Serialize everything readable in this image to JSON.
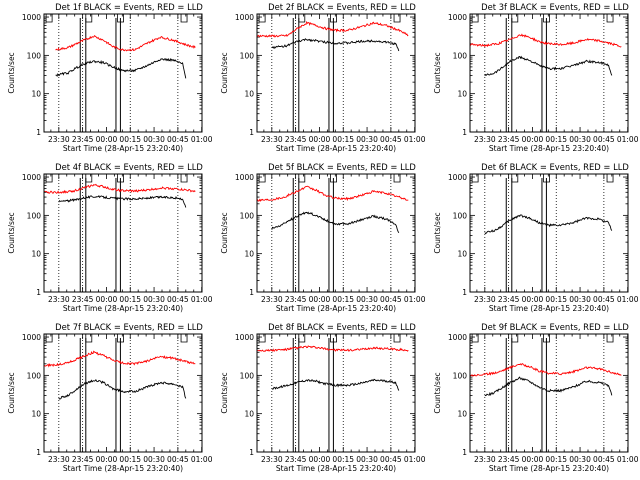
{
  "chart_data": [
    {
      "type": "line",
      "title": "Det 1f BLACK = Events, RED = LLD",
      "xlabel": "Start Time (28-Apr-15 23:20:40)",
      "ylabel": "Counts/sec",
      "yscale": "log",
      "ylim": [
        1,
        1200
      ],
      "y_ticks": [
        1,
        10,
        100,
        1000
      ],
      "y_tick_labels": [
        "1",
        "10",
        "100",
        "1000"
      ],
      "xlim": [
        "23:20:40",
        "01:00"
      ],
      "x_ticks": [
        "23:30",
        "23:45",
        "00:00",
        "00:15",
        "00:30",
        "00:45",
        "01:00"
      ],
      "grid": "dotted vertical lines at 23:30, 23:45, 00:15, 00:45",
      "series": [
        {
          "color": "#ff0000",
          "x": [
            "23:28",
            "23:36",
            "23:44",
            "23:52",
            "23:58",
            "00:04",
            "00:10",
            "00:18",
            "00:26",
            "00:34",
            "00:42",
            "00:50",
            "00:56"
          ],
          "values": [
            140,
            160,
            230,
            320,
            250,
            170,
            140,
            140,
            210,
            300,
            250,
            190,
            160
          ]
        },
        {
          "color": "#000000",
          "x": [
            "23:28",
            "23:36",
            "23:40",
            "23:46",
            "23:52",
            "23:58",
            "00:04",
            "00:10",
            "00:18",
            "00:26",
            "00:34",
            "00:42",
            "00:48",
            "00:50"
          ],
          "values": [
            30,
            35,
            45,
            60,
            70,
            65,
            50,
            40,
            40,
            55,
            80,
            75,
            60,
            25
          ]
        }
      ]
    },
    {
      "type": "line",
      "title": "Det 2f BLACK = Events, RED = LLD",
      "xlabel": "Start Time (28-Apr-15 23:20:40)",
      "ylabel": "Counts/sec",
      "yscale": "log",
      "ylim": [
        1,
        1200
      ],
      "y_ticks": [
        1,
        10,
        100,
        1000
      ],
      "y_tick_labels": [
        "1",
        "10",
        "100",
        "1000"
      ],
      "xlim": [
        "23:20:40",
        "01:00"
      ],
      "x_ticks": [
        "23:30",
        "23:45",
        "00:00",
        "00:15",
        "00:30",
        "00:45",
        "01:00"
      ],
      "grid": "dotted vertical lines at 23:30, 23:45, 00:15, 00:45",
      "series": [
        {
          "color": "#ff0000",
          "x": [
            "23:21",
            "23:36",
            "23:40",
            "23:46",
            "23:52",
            "23:58",
            "00:04",
            "00:10",
            "00:18",
            "00:26",
            "00:34",
            "00:42",
            "00:50",
            "00:56"
          ],
          "values": [
            320,
            320,
            330,
            500,
            700,
            600,
            500,
            450,
            450,
            550,
            700,
            600,
            450,
            330
          ]
        },
        {
          "color": "#000000",
          "x": [
            "23:30",
            "23:36",
            "23:40",
            "23:46",
            "23:52",
            "23:58",
            "00:04",
            "00:10",
            "00:18",
            "00:26",
            "00:34",
            "00:42",
            "00:48",
            "00:50"
          ],
          "values": [
            160,
            170,
            180,
            230,
            260,
            240,
            220,
            210,
            210,
            230,
            240,
            220,
            200,
            130
          ]
        }
      ]
    },
    {
      "type": "line",
      "title": "Det 3f BLACK = Events, RED = LLD",
      "xlabel": "Start Time (28-Apr-15 23:20:40)",
      "ylabel": "Counts/sec",
      "yscale": "log",
      "ylim": [
        1,
        1200
      ],
      "y_ticks": [
        1,
        10,
        100,
        1000
      ],
      "y_tick_labels": [
        "1",
        "10",
        "100",
        "1000"
      ],
      "xlim": [
        "23:20:40",
        "01:00"
      ],
      "x_ticks": [
        "23:30",
        "23:45",
        "00:00",
        "00:15",
        "00:30",
        "00:45",
        "01:00"
      ],
      "grid": "dotted vertical lines at 23:30, 23:45, 00:15, 00:45",
      "series": [
        {
          "color": "#ff0000",
          "x": [
            "23:21",
            "23:30",
            "23:38",
            "23:46",
            "23:52",
            "23:58",
            "00:04",
            "00:10",
            "00:18",
            "00:26",
            "00:34",
            "00:42",
            "00:50",
            "00:56"
          ],
          "values": [
            190,
            180,
            200,
            260,
            340,
            300,
            230,
            200,
            190,
            210,
            260,
            240,
            200,
            170
          ]
        },
        {
          "color": "#000000",
          "x": [
            "23:30",
            "23:36",
            "23:40",
            "23:46",
            "23:52",
            "23:58",
            "00:04",
            "00:10",
            "00:18",
            "00:26",
            "00:34",
            "00:42",
            "00:48",
            "00:50"
          ],
          "values": [
            30,
            35,
            45,
            70,
            90,
            75,
            55,
            45,
            45,
            55,
            70,
            65,
            55,
            30
          ]
        }
      ]
    },
    {
      "type": "line",
      "title": "Det 4f BLACK = Events, RED = LLD",
      "xlabel": "Start Time (28-Apr-15 23:20:40)",
      "ylabel": "Counts/sec",
      "yscale": "log",
      "ylim": [
        1,
        1200
      ],
      "y_ticks": [
        1,
        10,
        100,
        1000
      ],
      "y_tick_labels": [
        "1",
        "10",
        "100",
        "1000"
      ],
      "xlim": [
        "23:20:40",
        "01:00"
      ],
      "x_ticks": [
        "23:30",
        "23:45",
        "00:00",
        "00:15",
        "00:30",
        "00:45",
        "01:00"
      ],
      "grid": "dotted vertical lines at 23:30, 23:45, 00:15, 00:45",
      "series": [
        {
          "color": "#ff0000",
          "x": [
            "23:21",
            "23:30",
            "23:38",
            "23:46",
            "23:52",
            "23:58",
            "00:04",
            "00:10",
            "00:18",
            "00:26",
            "00:34",
            "00:42",
            "00:50",
            "00:56"
          ],
          "values": [
            400,
            400,
            420,
            520,
            620,
            560,
            480,
            440,
            430,
            460,
            520,
            500,
            460,
            420
          ]
        },
        {
          "color": "#000000",
          "x": [
            "23:30",
            "23:36",
            "23:40",
            "23:46",
            "23:52",
            "23:58",
            "00:04",
            "00:10",
            "00:18",
            "00:26",
            "00:34",
            "00:42",
            "00:48",
            "00:50"
          ],
          "values": [
            230,
            240,
            250,
            290,
            310,
            300,
            280,
            270,
            270,
            280,
            300,
            290,
            270,
            160
          ]
        }
      ]
    },
    {
      "type": "line",
      "title": "Det 5f BLACK = Events, RED = LLD",
      "xlabel": "Start Time (28-Apr-15 23:20:40)",
      "ylabel": "Counts/sec",
      "yscale": "log",
      "ylim": [
        1,
        1200
      ],
      "y_ticks": [
        1,
        10,
        100,
        1000
      ],
      "y_tick_labels": [
        "1",
        "10",
        "100",
        "1000"
      ],
      "xlim": [
        "23:20:40",
        "01:00"
      ],
      "x_ticks": [
        "23:30",
        "23:45",
        "00:00",
        "00:15",
        "00:30",
        "00:45",
        "01:00"
      ],
      "grid": "dotted vertical lines at 23:30, 23:45, 00:15, 00:45",
      "series": [
        {
          "color": "#ff0000",
          "x": [
            "23:21",
            "23:30",
            "23:38",
            "23:46",
            "23:52",
            "23:58",
            "00:04",
            "00:10",
            "00:18",
            "00:26",
            "00:34",
            "00:42",
            "00:50",
            "00:56"
          ],
          "values": [
            250,
            260,
            300,
            430,
            550,
            450,
            330,
            280,
            270,
            330,
            420,
            380,
            300,
            250
          ]
        },
        {
          "color": "#000000",
          "x": [
            "23:30",
            "23:36",
            "23:40",
            "23:46",
            "23:52",
            "23:58",
            "00:04",
            "00:10",
            "00:18",
            "00:26",
            "00:34",
            "00:42",
            "00:48",
            "00:50"
          ],
          "values": [
            45,
            55,
            70,
            95,
            120,
            100,
            75,
            60,
            60,
            75,
            95,
            80,
            60,
            35
          ]
        }
      ]
    },
    {
      "type": "line",
      "title": "Det 6f BLACK = Events, RED = LLD",
      "xlabel": "Start Time (28-Apr-15 23:20:40)",
      "ylabel": "Counts/sec",
      "yscale": "log",
      "ylim": [
        1,
        1200
      ],
      "y_ticks": [
        1,
        10,
        100,
        1000
      ],
      "y_tick_labels": [
        "1",
        "10",
        "100",
        "1000"
      ],
      "xlim": [
        "23:20:40",
        "01:00"
      ],
      "x_ticks": [
        "23:30",
        "23:45",
        "00:00",
        "00:15",
        "00:30",
        "00:45",
        "01:00"
      ],
      "grid": "dotted vertical lines at 23:30, 23:45, 00:15, 00:45",
      "series": [
        {
          "color": "#000000",
          "x": [
            "23:30",
            "23:36",
            "23:40",
            "23:46",
            "23:52",
            "23:58",
            "00:04",
            "00:10",
            "00:18",
            "00:26",
            "00:34",
            "00:42",
            "00:48",
            "00:50"
          ],
          "values": [
            35,
            40,
            50,
            75,
            100,
            85,
            65,
            55,
            55,
            65,
            85,
            80,
            65,
            40
          ]
        }
      ]
    },
    {
      "type": "line",
      "title": "Det 7f BLACK = Events, RED = LLD",
      "xlabel": "Start Time (28-Apr-15 23:20:40)",
      "ylabel": "Counts/sec",
      "yscale": "log",
      "ylim": [
        1,
        1200
      ],
      "y_ticks": [
        1,
        10,
        100,
        1000
      ],
      "y_tick_labels": [
        "1",
        "10",
        "100",
        "1000"
      ],
      "xlim": [
        "23:20:40",
        "01:00"
      ],
      "x_ticks": [
        "23:30",
        "23:45",
        "00:00",
        "00:15",
        "00:30",
        "00:45",
        "01:00"
      ],
      "grid": "dotted vertical lines at 23:30, 23:45, 00:15, 00:45",
      "series": [
        {
          "color": "#ff0000",
          "x": [
            "23:21",
            "23:30",
            "23:38",
            "23:46",
            "23:52",
            "23:58",
            "00:04",
            "00:10",
            "00:18",
            "00:26",
            "00:34",
            "00:42",
            "00:50",
            "00:56"
          ],
          "values": [
            180,
            190,
            230,
            320,
            400,
            330,
            250,
            210,
            200,
            240,
            310,
            280,
            230,
            200
          ]
        },
        {
          "color": "#000000",
          "x": [
            "23:30",
            "23:36",
            "23:40",
            "23:46",
            "23:52",
            "23:58",
            "00:04",
            "00:10",
            "00:18",
            "00:26",
            "00:34",
            "00:42",
            "00:48",
            "00:50"
          ],
          "values": [
            25,
            30,
            40,
            60,
            75,
            65,
            45,
            38,
            38,
            50,
            65,
            60,
            50,
            25
          ]
        }
      ]
    },
    {
      "type": "line",
      "title": "Det 8f BLACK = Events, RED = LLD",
      "xlabel": "Start Time (28-Apr-15 23:20:40)",
      "ylabel": "Counts/sec",
      "yscale": "log",
      "ylim": [
        1,
        1200
      ],
      "y_ticks": [
        1,
        10,
        100,
        1000
      ],
      "y_tick_labels": [
        "1",
        "10",
        "100",
        "1000"
      ],
      "xlim": [
        "23:20:40",
        "01:00"
      ],
      "x_ticks": [
        "23:30",
        "23:45",
        "00:00",
        "00:15",
        "00:30",
        "00:45",
        "01:00"
      ],
      "grid": "dotted vertical lines at 23:30, 23:45, 00:15, 00:45",
      "series": [
        {
          "color": "#ff0000",
          "x": [
            "23:21",
            "23:30",
            "23:38",
            "23:46",
            "23:52",
            "23:58",
            "00:04",
            "00:10",
            "00:18",
            "00:26",
            "00:34",
            "00:42",
            "00:50",
            "00:56"
          ],
          "values": [
            450,
            450,
            470,
            520,
            560,
            530,
            490,
            460,
            450,
            470,
            520,
            500,
            470,
            450
          ]
        },
        {
          "color": "#000000",
          "x": [
            "23:30",
            "23:36",
            "23:40",
            "23:46",
            "23:52",
            "23:58",
            "00:04",
            "00:10",
            "00:18",
            "00:26",
            "00:34",
            "00:42",
            "00:48",
            "00:50"
          ],
          "values": [
            45,
            50,
            55,
            65,
            75,
            70,
            60,
            55,
            55,
            62,
            75,
            72,
            65,
            40
          ]
        }
      ]
    },
    {
      "type": "line",
      "title": "Det 9f BLACK = Events, RED = LLD",
      "xlabel": "Start Time (28-Apr-15 23:20:40)",
      "ylabel": "Counts/sec",
      "yscale": "log",
      "ylim": [
        1,
        1200
      ],
      "y_ticks": [
        1,
        10,
        100,
        1000
      ],
      "y_tick_labels": [
        "1",
        "10",
        "100",
        "1000"
      ],
      "xlim": [
        "23:20:40",
        "01:00"
      ],
      "x_ticks": [
        "23:30",
        "23:45",
        "00:00",
        "00:15",
        "00:30",
        "00:45",
        "01:00"
      ],
      "grid": "dotted vertical lines at 23:30, 23:45, 00:15, 00:45",
      "series": [
        {
          "color": "#ff0000",
          "x": [
            "23:21",
            "23:30",
            "23:38",
            "23:46",
            "23:52",
            "23:58",
            "00:04",
            "00:10",
            "00:18",
            "00:26",
            "00:34",
            "00:42",
            "00:50",
            "00:56"
          ],
          "values": [
            100,
            105,
            120,
            160,
            200,
            170,
            130,
            115,
            110,
            125,
            160,
            150,
            120,
            100
          ]
        },
        {
          "color": "#000000",
          "x": [
            "23:30",
            "23:36",
            "23:40",
            "23:46",
            "23:52",
            "23:58",
            "00:04",
            "00:10",
            "00:18",
            "00:26",
            "00:34",
            "00:42",
            "00:48",
            "00:50"
          ],
          "values": [
            30,
            35,
            45,
            65,
            85,
            70,
            50,
            40,
            40,
            50,
            70,
            65,
            55,
            30
          ]
        }
      ]
    }
  ]
}
